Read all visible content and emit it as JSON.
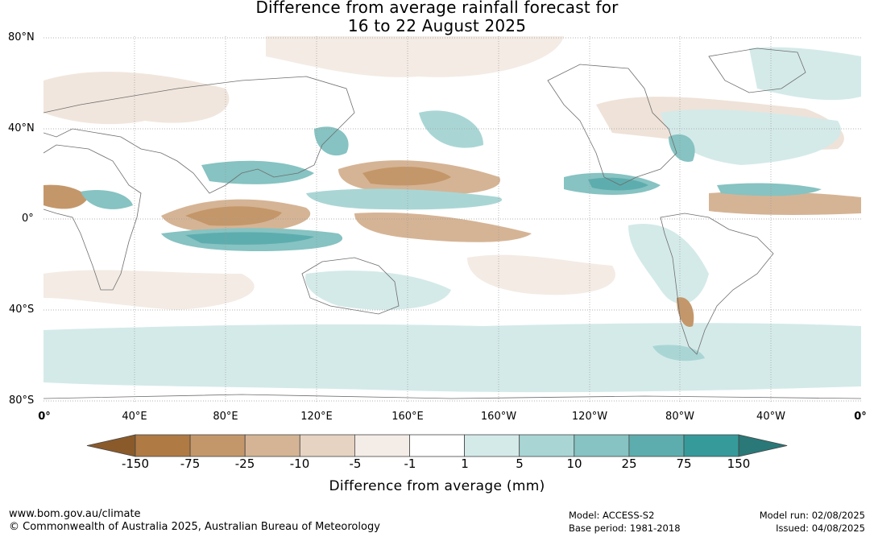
{
  "title": {
    "line1": "Difference from average rainfall forecast for",
    "line2": "16 to 22 August 2025"
  },
  "map": {
    "lat_labels": [
      "80°N",
      "40°N",
      "0°",
      "40°S",
      "80°S"
    ],
    "lon_labels": [
      "0°",
      "40°E",
      "80°E",
      "120°E",
      "160°E",
      "160°W",
      "120°W",
      "80°W",
      "40°W",
      "0°"
    ],
    "colors": {
      "ocean": "#ffffff",
      "coastline": "#6e6e6e",
      "grid": "#9a9a9a"
    }
  },
  "colorbar": {
    "title": "Difference from average (mm)",
    "ticks": [
      "-150",
      "-75",
      "-25",
      "-10",
      "-5",
      "-1",
      "1",
      "5",
      "10",
      "25",
      "75",
      "150"
    ],
    "colors": [
      "#8a5a2b",
      "#b07a44",
      "#c4976a",
      "#d5b495",
      "#e6d3c2",
      "#f4ece6",
      "#ffffff",
      "#d4eae9",
      "#a9d6d5",
      "#86c3c2",
      "#5eadae",
      "#369a9a",
      "#2a7878"
    ]
  },
  "footer": {
    "website": "www.bom.gov.au/climate",
    "copyright": "© Commonwealth of Australia 2025, Australian Bureau of Meteorology",
    "model": "Model: ACCESS-S2",
    "base_period": "Base period: 1981-2018",
    "model_run": "Model run: 02/08/2025",
    "issued": "Issued: 04/08/2025"
  }
}
